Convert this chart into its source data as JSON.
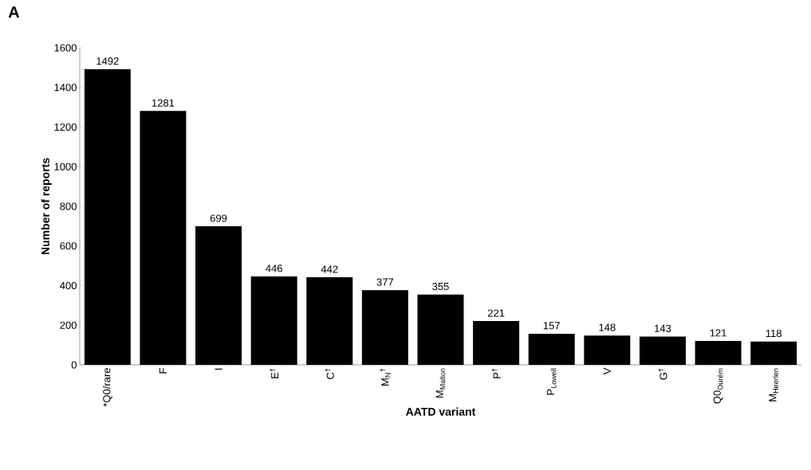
{
  "chart_data": {
    "type": "bar",
    "title": "A",
    "xlabel": "AATD variant",
    "ylabel": "Number of reports",
    "categories": [
      "*Q0/rare",
      "F",
      "I",
      "E$^{†}$",
      "C$^{†}$",
      "M$_{N}$$^{†}$",
      "M$_{Malton}$",
      "P$^{†}$",
      "P$_{Lowell}$",
      "V",
      "G$^{†}$",
      "Q0$_{Ourém}$",
      "M$_{Heerlen}$"
    ],
    "values": [
      1492,
      1281,
      699,
      446,
      442,
      377,
      355,
      221,
      157,
      148,
      143,
      121,
      118
    ],
    "color": "#000000",
    "ylim": [
      0,
      1600
    ],
    "yticks": [
      0,
      200,
      400,
      600,
      800,
      1000,
      1200,
      1400,
      1600
    ],
    "grid": false,
    "data_labels": true
  }
}
